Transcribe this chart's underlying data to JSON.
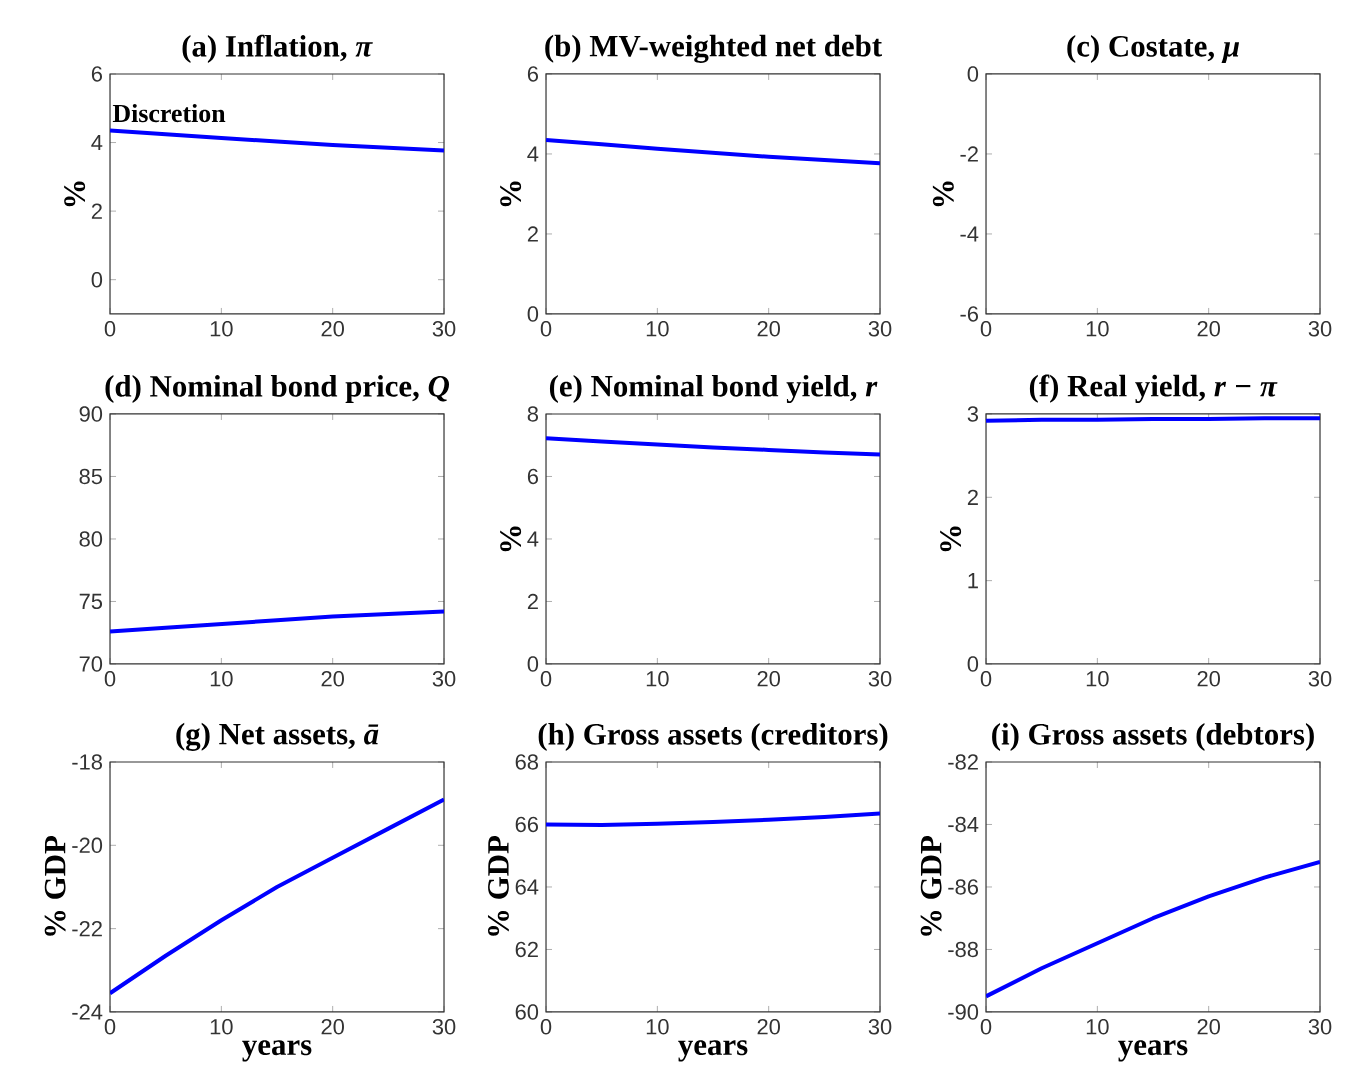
{
  "chart_data": [
    {
      "type": "line",
      "title": "(a) Inflation, *π*",
      "ylabel": "%",
      "x": [
        0,
        5,
        10,
        15,
        20,
        25,
        30
      ],
      "xlim": [
        0,
        30
      ],
      "xticks": [
        0,
        10,
        20,
        30
      ],
      "ylim": [
        -1,
        6
      ],
      "yticks": [
        0,
        2,
        4,
        6
      ],
      "annotations": [
        {
          "text": "Discretion",
          "x": 0,
          "y": 4.35
        }
      ],
      "series": [
        {
          "color": "#0000ff",
          "values": [
            4.35,
            4.24,
            4.13,
            4.03,
            3.93,
            3.85,
            3.77
          ]
        }
      ]
    },
    {
      "type": "line",
      "title": "(b) MV-weighted net debt",
      "ylabel": "%",
      "x": [
        0,
        5,
        10,
        15,
        20,
        25,
        30
      ],
      "xlim": [
        0,
        30
      ],
      "xticks": [
        0,
        10,
        20,
        30
      ],
      "ylim": [
        0,
        6
      ],
      "yticks": [
        0,
        2,
        4,
        6
      ],
      "series": [
        {
          "color": "#0000ff",
          "values": [
            4.35,
            4.24,
            4.13,
            4.03,
            3.93,
            3.85,
            3.77
          ]
        }
      ]
    },
    {
      "type": "line",
      "title": "(c) Costate, *μ*",
      "ylabel": "%",
      "xlim": [
        0,
        30
      ],
      "xticks": [
        0,
        10,
        20,
        30
      ],
      "ylim": [
        -6,
        0
      ],
      "yticks": [
        -6,
        -4,
        -2,
        0
      ]
    },
    {
      "type": "line",
      "title": "(d) Nominal bond price, *Q*",
      "x": [
        0,
        5,
        10,
        15,
        20,
        25,
        30
      ],
      "xlim": [
        0,
        30
      ],
      "xticks": [
        0,
        10,
        20,
        30
      ],
      "ylim": [
        70,
        90
      ],
      "yticks": [
        70,
        75,
        80,
        85,
        90
      ],
      "series": [
        {
          "color": "#0000ff",
          "values": [
            72.6,
            72.9,
            73.2,
            73.5,
            73.8,
            74.0,
            74.2
          ]
        }
      ]
    },
    {
      "type": "line",
      "title": "(e) Nominal bond yield, *r*",
      "ylabel": "%",
      "x": [
        0,
        5,
        10,
        15,
        20,
        25,
        30
      ],
      "xlim": [
        0,
        30
      ],
      "xticks": [
        0,
        10,
        20,
        30
      ],
      "ylim": [
        0,
        8
      ],
      "yticks": [
        0,
        2,
        4,
        6,
        8
      ],
      "series": [
        {
          "color": "#0000ff",
          "values": [
            7.22,
            7.12,
            7.02,
            6.93,
            6.85,
            6.77,
            6.7
          ]
        }
      ]
    },
    {
      "type": "line",
      "title": "(f) Real yield, *r − π*",
      "ylabel": "%",
      "x": [
        0,
        5,
        10,
        15,
        20,
        25,
        30
      ],
      "xlim": [
        0,
        30
      ],
      "xticks": [
        0,
        10,
        20,
        30
      ],
      "ylim": [
        0,
        3
      ],
      "yticks": [
        0,
        1,
        2,
        3
      ],
      "series": [
        {
          "color": "#0000ff",
          "values": [
            2.92,
            2.93,
            2.93,
            2.94,
            2.94,
            2.95,
            2.95
          ]
        }
      ]
    },
    {
      "type": "line",
      "title": "(g) Net assets, *ā*",
      "xlabel": "years",
      "ylabel": "% GDP",
      "x": [
        0,
        5,
        10,
        15,
        20,
        25,
        30
      ],
      "xlim": [
        0,
        30
      ],
      "xticks": [
        0,
        10,
        20,
        30
      ],
      "ylim": [
        -24,
        -18
      ],
      "yticks": [
        -24,
        -22,
        -20,
        -18
      ],
      "series": [
        {
          "color": "#0000ff",
          "values": [
            -23.55,
            -22.65,
            -21.8,
            -21.0,
            -20.3,
            -19.6,
            -18.9
          ]
        }
      ]
    },
    {
      "type": "line",
      "title": "(h) Gross assets (creditors)",
      "xlabel": "years",
      "ylabel": "% GDP",
      "x": [
        0,
        5,
        10,
        15,
        20,
        25,
        30
      ],
      "xlim": [
        0,
        30
      ],
      "xticks": [
        0,
        10,
        20,
        30
      ],
      "ylim": [
        60,
        68
      ],
      "yticks": [
        60,
        62,
        64,
        66,
        68
      ],
      "series": [
        {
          "color": "#0000ff",
          "values": [
            66.0,
            65.98,
            66.02,
            66.08,
            66.15,
            66.24,
            66.35
          ]
        }
      ]
    },
    {
      "type": "line",
      "title": "(i) Gross assets (debtors)",
      "xlabel": "years",
      "ylabel": "% GDP",
      "x": [
        0,
        5,
        10,
        15,
        20,
        25,
        30
      ],
      "xlim": [
        0,
        30
      ],
      "xticks": [
        0,
        10,
        20,
        30
      ],
      "ylim": [
        -90,
        -82
      ],
      "yticks": [
        -90,
        -88,
        -86,
        -84,
        -82
      ],
      "series": [
        {
          "color": "#0000ff",
          "values": [
            -89.5,
            -88.6,
            -87.8,
            -87.0,
            -86.3,
            -85.7,
            -85.2
          ]
        }
      ]
    }
  ]
}
